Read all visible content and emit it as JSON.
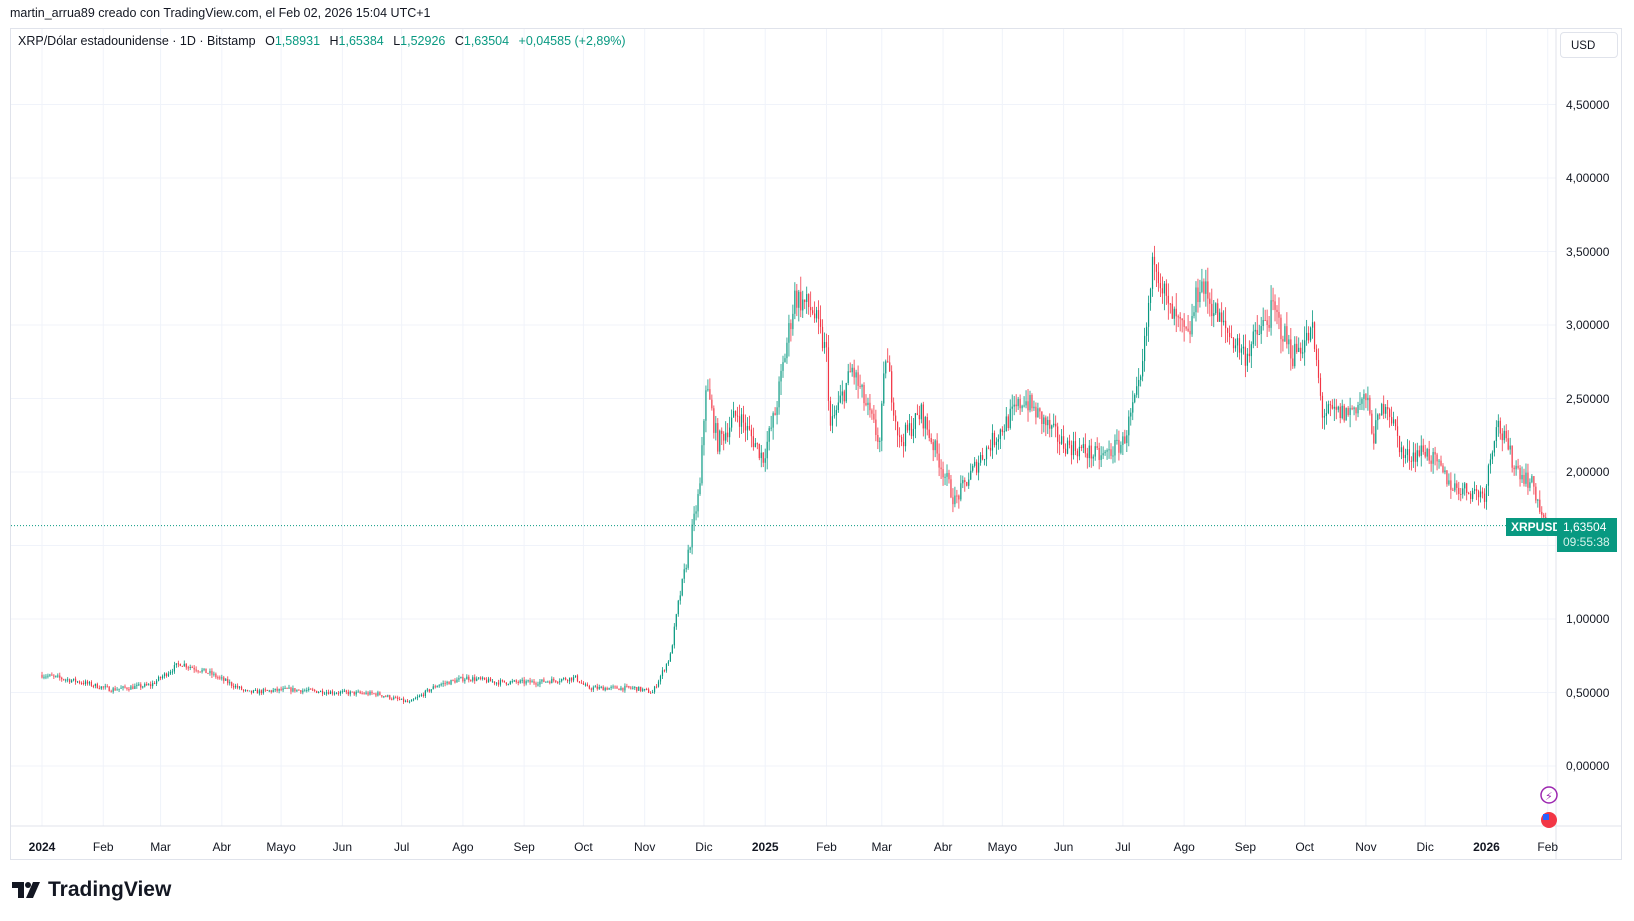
{
  "credit": "martin_arrua89 creado con TradingView.com, el Feb 02, 2026 15:04 UTC+1",
  "legend": {
    "symbol": "XRP/Dólar estadounidense · 1D · Bitstamp",
    "o_label": "O",
    "o": "1,58931",
    "h_label": "H",
    "h": "1,65384",
    "l_label": "L",
    "l": "1,52926",
    "c_label": "C",
    "c": "1,63504",
    "change": "+0,04585 (+2,89%)"
  },
  "currency_button": "USD",
  "last_price": {
    "symbol": "XRPUSD",
    "price": "1,63504",
    "countdown": "09:55:38"
  },
  "footer_logo": "TradingView",
  "colors": {
    "up": "#089981",
    "down": "#f23645",
    "grid": "#f0f3fa"
  },
  "chart_data": {
    "type": "candlestick",
    "title": "XRP/Dólar estadounidense · 1D · Bitstamp",
    "ylim": [
      -0.4,
      4.85
    ],
    "price_ticks": [
      "4,50000",
      "4,00000",
      "3,50000",
      "3,00000",
      "2,50000",
      "2,00000",
      "1,00000",
      "0,50000",
      "0,00000"
    ],
    "price_tick_values": [
      4.5,
      4.0,
      3.5,
      3.0,
      2.5,
      2.0,
      1.0,
      0.5,
      0.0
    ],
    "time_ticks": [
      {
        "label": "2024",
        "day": 0,
        "bold": true
      },
      {
        "label": "Feb",
        "day": 31
      },
      {
        "label": "Mar",
        "day": 60
      },
      {
        "label": "Abr",
        "day": 91
      },
      {
        "label": "Mayo",
        "day": 121
      },
      {
        "label": "Jun",
        "day": 152
      },
      {
        "label": "Jul",
        "day": 182
      },
      {
        "label": "Ago",
        "day": 213
      },
      {
        "label": "Sep",
        "day": 244
      },
      {
        "label": "Oct",
        "day": 274
      },
      {
        "label": "Nov",
        "day": 305
      },
      {
        "label": "Dic",
        "day": 335
      },
      {
        "label": "2025",
        "day": 366,
        "bold": true
      },
      {
        "label": "Feb",
        "day": 397
      },
      {
        "label": "Mar",
        "day": 425
      },
      {
        "label": "Abr",
        "day": 456
      },
      {
        "label": "Mayo",
        "day": 486
      },
      {
        "label": "Jun",
        "day": 517
      },
      {
        "label": "Jul",
        "day": 547
      },
      {
        "label": "Ago",
        "day": 578
      },
      {
        "label": "Sep",
        "day": 609
      },
      {
        "label": "Oct",
        "day": 639
      },
      {
        "label": "Nov",
        "day": 670
      },
      {
        "label": "Dic",
        "day": 700
      },
      {
        "label": "2026",
        "day": 731,
        "bold": true
      },
      {
        "label": "Feb",
        "day": 762
      }
    ],
    "close_keypoints_day_price": [
      [
        0,
        0.62
      ],
      [
        20,
        0.57
      ],
      [
        35,
        0.52
      ],
      [
        55,
        0.55
      ],
      [
        70,
        0.7
      ],
      [
        85,
        0.63
      ],
      [
        104,
        0.5
      ],
      [
        125,
        0.52
      ],
      [
        150,
        0.5
      ],
      [
        170,
        0.49
      ],
      [
        186,
        0.43
      ],
      [
        200,
        0.55
      ],
      [
        215,
        0.6
      ],
      [
        230,
        0.57
      ],
      [
        250,
        0.57
      ],
      [
        270,
        0.6
      ],
      [
        276,
        0.53
      ],
      [
        300,
        0.53
      ],
      [
        309,
        0.5
      ],
      [
        318,
        0.75
      ],
      [
        322,
        1.1
      ],
      [
        327,
        1.45
      ],
      [
        333,
        1.9
      ],
      [
        336,
        2.6
      ],
      [
        342,
        2.2
      ],
      [
        352,
        2.4
      ],
      [
        365,
        2.1
      ],
      [
        371,
        2.4
      ],
      [
        381,
        3.2
      ],
      [
        390,
        3.1
      ],
      [
        397,
        2.8
      ],
      [
        399,
        2.3
      ],
      [
        410,
        2.7
      ],
      [
        424,
        2.2
      ],
      [
        427,
        2.8
      ],
      [
        434,
        2.2
      ],
      [
        445,
        2.4
      ],
      [
        462,
        1.8
      ],
      [
        475,
        2.1
      ],
      [
        497,
        2.5
      ],
      [
        516,
        2.2
      ],
      [
        536,
        2.1
      ],
      [
        547,
        2.2
      ],
      [
        556,
        2.6
      ],
      [
        563,
        3.5
      ],
      [
        570,
        3.1
      ],
      [
        580,
        2.9
      ],
      [
        586,
        3.3
      ],
      [
        597,
        3.0
      ],
      [
        609,
        2.8
      ],
      [
        623,
        3.1
      ],
      [
        633,
        2.8
      ],
      [
        643,
        2.95
      ],
      [
        648,
        2.4
      ],
      [
        660,
        2.4
      ],
      [
        670,
        2.5
      ],
      [
        674,
        2.25
      ],
      [
        680,
        2.5
      ],
      [
        689,
        2.1
      ],
      [
        700,
        2.15
      ],
      [
        714,
        1.9
      ],
      [
        730,
        1.85
      ],
      [
        736,
        2.35
      ],
      [
        745,
        2.05
      ],
      [
        755,
        1.9
      ],
      [
        761,
        1.6
      ],
      [
        762,
        1.635
      ]
    ],
    "last_close": 1.63504
  }
}
